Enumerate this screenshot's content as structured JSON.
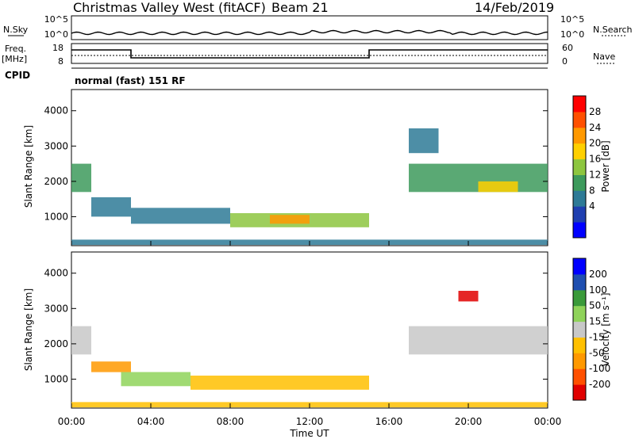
{
  "header": {
    "title_left": "Christmas Valley West (fitACF)",
    "title_mid": "Beam 21",
    "title_right": "14/Feb/2019"
  },
  "noise_panel": {
    "left_label": "N.Sky",
    "right_label": "N.Search",
    "left_ticks": [
      "10^5",
      "10^0"
    ],
    "right_ticks": [
      "10^5",
      "10^0"
    ]
  },
  "freq_panel": {
    "left_label_1": "Freq.",
    "left_label_2": "[MHz]",
    "right_label": "Nave",
    "left_ticks": [
      "18",
      "8"
    ],
    "right_ticks": [
      "60",
      "0"
    ],
    "freq_steps": [
      {
        "t0": 0,
        "t1": 3.0,
        "level": "high"
      },
      {
        "t0": 3.0,
        "t1": 15.0,
        "level": "low"
      },
      {
        "t0": 15.0,
        "t1": 24,
        "level": "high"
      }
    ]
  },
  "cpid": {
    "label": "CPID",
    "mode_text": "normal (fast) 151 RF"
  },
  "time_axis": {
    "label": "Time UT",
    "ticks": [
      "00:00",
      "04:00",
      "08:00",
      "12:00",
      "16:00",
      "20:00",
      "00:00"
    ]
  },
  "chart_data": [
    {
      "type": "heatmap",
      "ylabel": "Slant Range [km]",
      "ylim": [
        180,
        4600
      ],
      "y_ticks": [
        "4000",
        "3000",
        "2000",
        "1000"
      ],
      "colorbar": {
        "label": "Power [dB]",
        "ticks": [
          "28",
          "24",
          "20",
          "16",
          "12",
          "8",
          "4"
        ],
        "colors": [
          "#0000ff",
          "#1f3fb0",
          "#2e7a96",
          "#3d9a5c",
          "#8dc63f",
          "#ffd000",
          "#ff9900",
          "#ff5000",
          "#ff0000"
        ]
      },
      "regions": [
        {
          "t0": 0.0,
          "t1": 1.0,
          "r0": 1700,
          "r1": 2500,
          "value": 14
        },
        {
          "t0": 1.0,
          "t1": 3.0,
          "r0": 1000,
          "r1": 1550,
          "value": 10
        },
        {
          "t0": 3.0,
          "t1": 8.0,
          "r0": 800,
          "r1": 1250,
          "value": 9
        },
        {
          "t0": 8.0,
          "t1": 12.0,
          "r0": 700,
          "r1": 1100,
          "value": 18
        },
        {
          "t0": 10.0,
          "t1": 12.0,
          "r0": 800,
          "r1": 1050,
          "value": 24
        },
        {
          "t0": 12.0,
          "t1": 15.0,
          "r0": 700,
          "r1": 1100,
          "value": 17
        },
        {
          "t0": 17.0,
          "t1": 24.0,
          "r0": 1700,
          "r1": 2500,
          "value": 15
        },
        {
          "t0": 20.5,
          "t1": 22.5,
          "r0": 1700,
          "r1": 2000,
          "value": 21
        },
        {
          "t0": 17.0,
          "t1": 18.5,
          "r0": 2800,
          "r1": 3500,
          "value": 10
        },
        {
          "t0": 0.0,
          "t1": 24.0,
          "r0": 200,
          "r1": 350,
          "value": 10
        }
      ]
    },
    {
      "type": "heatmap",
      "ylabel": "Slant Range [km]",
      "ylim": [
        180,
        4600
      ],
      "y_ticks": [
        "4000",
        "3000",
        "2000",
        "1000"
      ],
      "colorbar": {
        "label": "Velocity [m s⁻¹]",
        "ticks": [
          "200",
          "100",
          "50",
          "15",
          "-15",
          "-50",
          "-100",
          "-200"
        ],
        "colors": [
          "#e00000",
          "#ff5000",
          "#ff9900",
          "#ffc000",
          "#c8c8c8",
          "#8fd35a",
          "#3a9a3a",
          "#1f4fb0",
          "#0000ff"
        ]
      },
      "regions": [
        {
          "t0": 0.0,
          "t1": 1.0,
          "r0": 1700,
          "r1": 2500,
          "value": 0
        },
        {
          "t0": 1.0,
          "t1": 3.0,
          "r0": 1200,
          "r1": 1500,
          "value": -60
        },
        {
          "t0": 2.5,
          "t1": 6.0,
          "r0": 800,
          "r1": 1200,
          "value": 40
        },
        {
          "t0": 6.0,
          "t1": 15.0,
          "r0": 700,
          "r1": 1100,
          "value": -50
        },
        {
          "t0": 17.0,
          "t1": 24.0,
          "r0": 1700,
          "r1": 2500,
          "value": 0
        },
        {
          "t0": 19.5,
          "t1": 20.5,
          "r0": 3200,
          "r1": 3500,
          "value": -250
        },
        {
          "t0": 0.0,
          "t1": 24.0,
          "r0": 200,
          "r1": 350,
          "value": -40
        }
      ]
    }
  ]
}
